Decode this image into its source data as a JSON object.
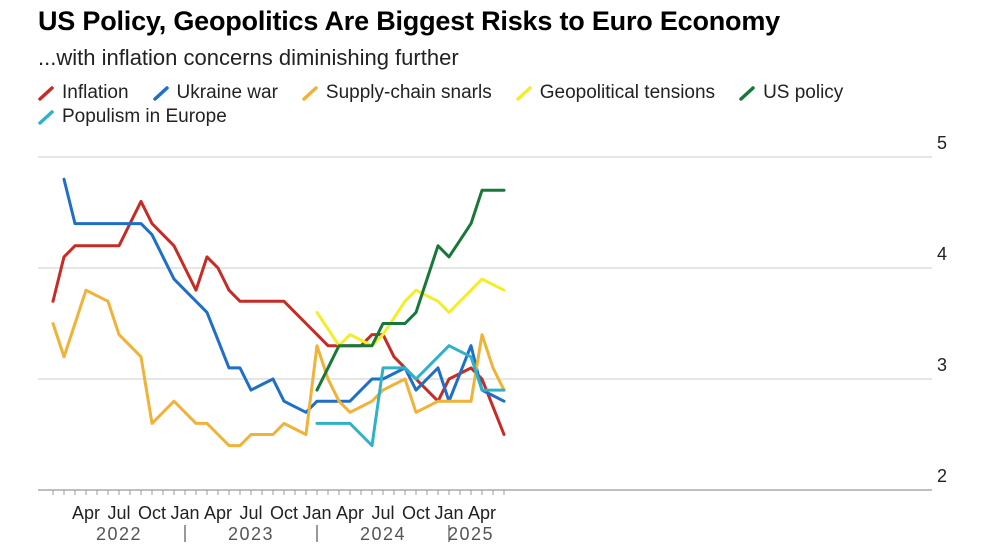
{
  "header": {
    "title": "US Policy, Geopolitics Are Biggest Risks to Euro Economy",
    "subtitle": "...with inflation concerns diminishing further"
  },
  "colors": {
    "inflation": "#c62b26",
    "ukraine": "#1f6fc6",
    "supply": "#f0b237",
    "geo": "#f4ee2a",
    "us": "#17783a",
    "populism": "#2fb2c8",
    "grid": "#cccccc",
    "axis": "#999999"
  },
  "chart_data": {
    "type": "line",
    "title": "US Policy, Geopolitics Are Biggest Risks to Euro Economy",
    "subtitle": "...with inflation concerns diminishing further",
    "ylim": [
      2,
      5
    ],
    "yticks": [
      2,
      3,
      4,
      5
    ],
    "y_axis_side": "right",
    "grid": true,
    "legend_position": "top",
    "x_months": [
      "2022-01",
      "2022-02",
      "2022-03",
      "2022-04",
      "2022-05",
      "2022-06",
      "2022-07",
      "2022-08",
      "2022-09",
      "2022-10",
      "2022-11",
      "2022-12",
      "2023-01",
      "2023-02",
      "2023-03",
      "2023-04",
      "2023-05",
      "2023-06",
      "2023-07",
      "2023-08",
      "2023-09",
      "2023-10",
      "2023-11",
      "2023-12",
      "2024-01",
      "2024-02",
      "2024-03",
      "2024-04",
      "2024-05",
      "2024-06",
      "2024-07",
      "2024-08",
      "2024-09",
      "2024-10",
      "2024-11",
      "2024-12",
      "2025-01",
      "2025-02",
      "2025-03",
      "2025-04",
      "2025-05",
      "2025-06"
    ],
    "x_tick_labels": [
      {
        "month": "2022-04",
        "label": "Apr"
      },
      {
        "month": "2022-07",
        "label": "Jul"
      },
      {
        "month": "2022-10",
        "label": "Oct"
      },
      {
        "month": "2023-01",
        "label": "Jan"
      },
      {
        "month": "2023-04",
        "label": "Apr"
      },
      {
        "month": "2023-07",
        "label": "Jul"
      },
      {
        "month": "2023-10",
        "label": "Oct"
      },
      {
        "month": "2024-01",
        "label": "Jan"
      },
      {
        "month": "2024-04",
        "label": "Apr"
      },
      {
        "month": "2024-07",
        "label": "Jul"
      },
      {
        "month": "2024-10",
        "label": "Oct"
      },
      {
        "month": "2025-01",
        "label": "Jan"
      },
      {
        "month": "2025-04",
        "label": "Apr"
      }
    ],
    "year_labels": [
      {
        "year": "2022",
        "center_month": "2022-07"
      },
      {
        "year": "2023",
        "center_month": "2023-07"
      },
      {
        "year": "2024",
        "center_month": "2024-07"
      },
      {
        "year": "2025",
        "center_month": "2025-03"
      }
    ],
    "year_separators": [
      "2023-01",
      "2024-01",
      "2025-01"
    ],
    "series": [
      {
        "name": "Inflation",
        "color_key": "inflation",
        "start": "2022-01",
        "values": [
          3.7,
          4.1,
          4.2,
          4.2,
          4.2,
          4.2,
          4.2,
          4.4,
          4.6,
          4.4,
          4.3,
          4.2,
          4.0,
          3.8,
          4.1,
          4.0,
          3.8,
          3.7,
          3.7,
          3.7,
          3.7,
          3.7,
          3.6,
          3.5,
          3.4,
          3.3,
          3.3,
          3.3,
          3.3,
          3.4,
          3.4,
          3.2,
          3.1,
          3.0,
          2.9,
          2.8,
          3.0,
          3.05,
          3.1,
          3.0,
          2.75,
          2.5
        ]
      },
      {
        "name": "Ukraine war",
        "color_key": "ukraine",
        "start": "2022-02",
        "values": [
          4.8,
          4.4,
          4.4,
          4.4,
          4.4,
          4.4,
          4.4,
          4.4,
          4.3,
          4.1,
          3.9,
          3.8,
          3.7,
          3.6,
          3.35,
          3.1,
          3.1,
          2.9,
          2.95,
          3.0,
          2.8,
          2.75,
          2.7,
          2.8,
          2.8,
          2.8,
          2.8,
          2.9,
          3.0,
          3.0,
          3.05,
          3.1,
          2.9,
          3.0,
          3.1,
          2.8,
          3.05,
          3.3,
          2.9,
          2.85,
          2.8
        ]
      },
      {
        "name": "Supply-chain snarls",
        "color_key": "supply",
        "start": "2022-01",
        "values": [
          3.5,
          3.2,
          3.5,
          3.8,
          3.75,
          3.7,
          3.4,
          3.3,
          3.2,
          2.6,
          2.7,
          2.8,
          2.7,
          2.6,
          2.6,
          2.5,
          2.4,
          2.4,
          2.5,
          2.5,
          2.5,
          2.6,
          2.55,
          2.5,
          3.3,
          3.0,
          2.8,
          2.7,
          2.75,
          2.8,
          2.9,
          2.95,
          3.0,
          2.7,
          2.75,
          2.8,
          2.8,
          2.8,
          2.8,
          3.4,
          3.1,
          2.9
        ]
      },
      {
        "name": "Geopolitical tensions",
        "color_key": "geo",
        "start": "2024-01",
        "values": [
          3.6,
          3.45,
          3.3,
          3.4,
          3.35,
          3.3,
          3.4,
          3.55,
          3.7,
          3.8,
          3.75,
          3.7,
          3.6,
          3.7,
          3.8,
          3.9,
          3.85,
          3.8
        ]
      },
      {
        "name": "US policy",
        "color_key": "us",
        "start": "2024-01",
        "values": [
          2.9,
          3.1,
          3.3,
          3.3,
          3.3,
          3.3,
          3.5,
          3.5,
          3.5,
          3.6,
          3.9,
          4.2,
          4.1,
          4.25,
          4.4,
          4.7,
          4.7,
          4.7
        ]
      },
      {
        "name": "Populism in Europe",
        "color_key": "populism",
        "start": "2024-01",
        "values": [
          2.6,
          2.6,
          2.6,
          2.6,
          2.5,
          2.4,
          3.1,
          3.1,
          3.1,
          3.0,
          3.1,
          3.2,
          3.3,
          3.25,
          3.2,
          2.9,
          2.9,
          2.9
        ]
      }
    ]
  }
}
